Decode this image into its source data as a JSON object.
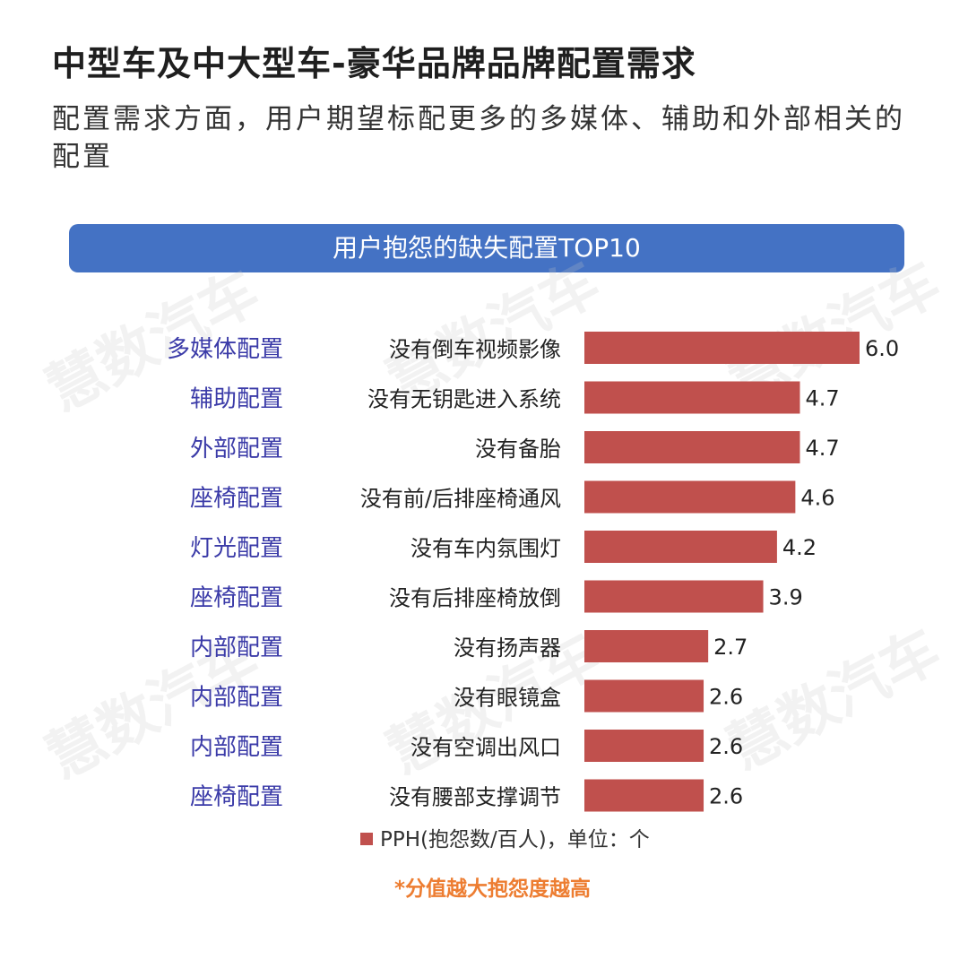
{
  "header": {
    "title": "中型车及中大型车-豪华品牌品牌配置需求",
    "subtitle": "配置需求方面，用户期望标配更多的多媒体、辅助和外部相关的配置"
  },
  "banner": {
    "label": "用户抱怨的缺失配置TOP10"
  },
  "watermark": {
    "text": "慧数汽车"
  },
  "legend": {
    "label": "PPH(抱怨数/百人)，单位：个"
  },
  "footnote": {
    "text": "*分值越大抱怨度越高"
  },
  "colors": {
    "bar": "#c0504d",
    "category": "#3b3ba8",
    "banner": "#4472c4",
    "footnote": "#ed7d31"
  },
  "chart_data": {
    "type": "bar",
    "orientation": "horizontal",
    "groups": [
      "多媒体配置",
      "辅助配置",
      "外部配置",
      "座椅配置",
      "灯光配置",
      "座椅配置",
      "内部配置",
      "内部配置",
      "内部配置",
      "座椅配置"
    ],
    "categories": [
      "没有倒车视频影像",
      "没有无钥匙进入系统",
      "没有备胎",
      "没有前/后排座椅通风",
      "没有车内氛围灯",
      "没有后排座椅放倒",
      "没有扬声器",
      "没有眼镜盒",
      "没有空调出风口",
      "没有腰部支撑调节"
    ],
    "values": [
      6.0,
      4.7,
      4.7,
      4.6,
      4.2,
      3.9,
      2.7,
      2.6,
      2.6,
      2.6
    ],
    "value_labels": [
      "6.0",
      "4.7",
      "4.7",
      "4.6",
      "4.2",
      "3.9",
      "2.7",
      "2.6",
      "2.6",
      "2.6"
    ],
    "series": [
      {
        "name": "PPH(抱怨数/百人)，单位：个",
        "values": [
          6.0,
          4.7,
          4.7,
          4.6,
          4.2,
          3.9,
          2.7,
          2.6,
          2.6,
          2.6
        ]
      }
    ],
    "xlim": [
      0,
      6.0
    ],
    "grid": false,
    "legend_position": "bottom"
  }
}
